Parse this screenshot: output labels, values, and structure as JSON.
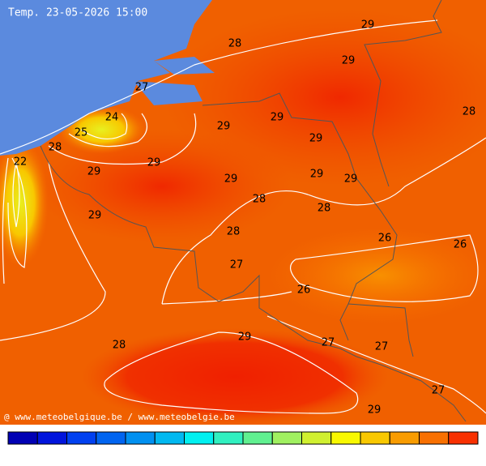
{
  "title": "Temp. 23-05-2026 15:00",
  "footer": "@ www.meteobelgique.be / www.meteobelgie.be",
  "labels": [
    29,
    28,
    29,
    27,
    28,
    29,
    24,
    29,
    25,
    29,
    28,
    22,
    29,
    29,
    29,
    29,
    29,
    28,
    28,
    29,
    28,
    26,
    26,
    27,
    26,
    29,
    27,
    28,
    27,
    27,
    29
  ],
  "scale_colors": [
    "#0000b4",
    "#0014dc",
    "#0040f0",
    "#0064f0",
    "#0090f0",
    "#00b8f0",
    "#00f0f0",
    "#30f0c0",
    "#60f090",
    "#a0f060",
    "#d0f030",
    "#f8f800",
    "#f8c800",
    "#f89c00",
    "#f87000",
    "#f83000"
  ]
}
